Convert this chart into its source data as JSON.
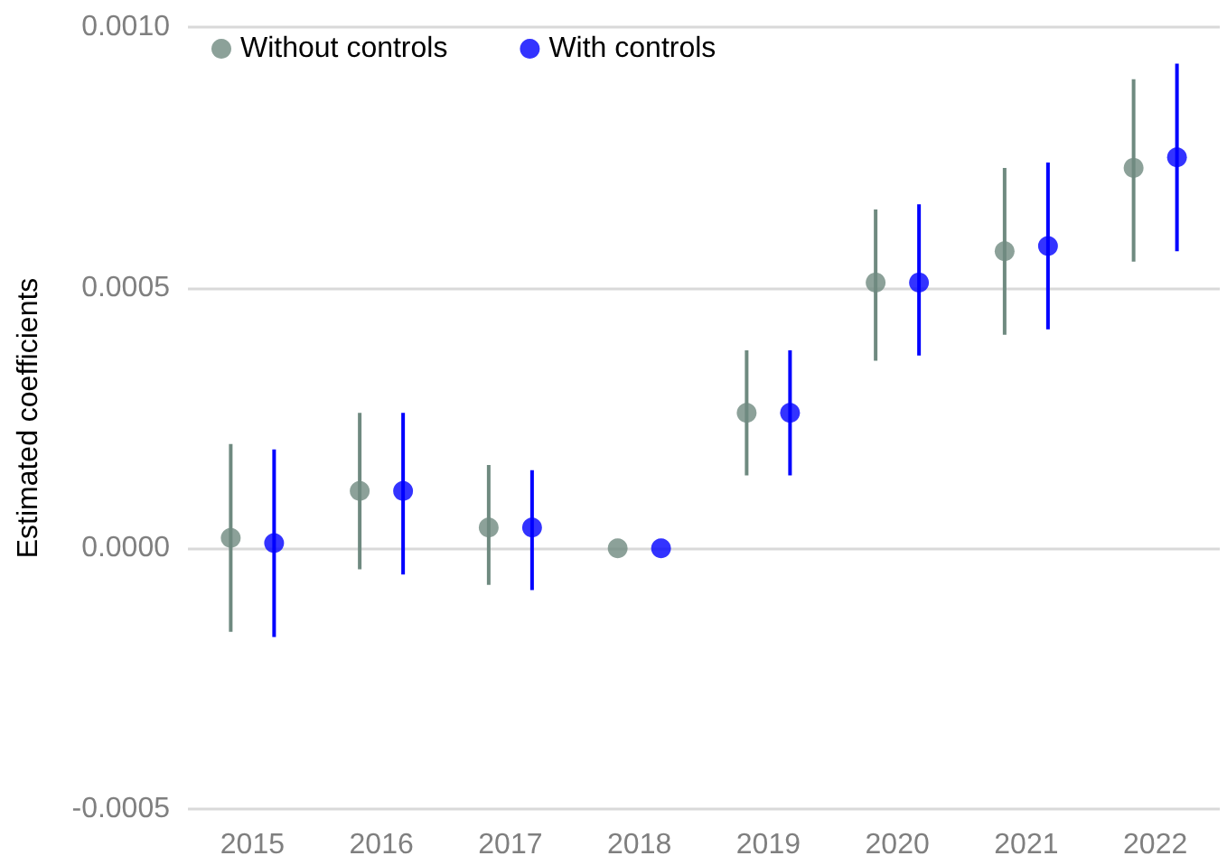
{
  "chart_data": {
    "type": "scatter",
    "ylabel": "Estimated coefficients",
    "categories": [
      "2015",
      "2016",
      "2017",
      "2018",
      "2019",
      "2020",
      "2021",
      "2022"
    ],
    "series": [
      {
        "name": "Without controls",
        "color": "#6f8a80",
        "values": [
          2e-05,
          0.00011,
          4e-05,
          0,
          0.00026,
          0.00051,
          0.00057,
          0.00073
        ],
        "errors": [
          [
            -0.00016,
            0.0002
          ],
          [
            -4e-05,
            0.00026
          ],
          [
            -7e-05,
            0.00016
          ],
          null,
          [
            0.00014,
            0.00038
          ],
          [
            0.00036,
            0.00065
          ],
          [
            0.00041,
            0.00073
          ],
          [
            0.00055,
            0.0009
          ]
        ]
      },
      {
        "name": "With controls",
        "color": "#0000ff",
        "values": [
          1e-05,
          0.00011,
          4e-05,
          0,
          0.00026,
          0.00051,
          0.00058,
          0.00075
        ],
        "errors": [
          [
            -0.00017,
            0.00019
          ],
          [
            -5e-05,
            0.00026
          ],
          [
            -8e-05,
            0.00015
          ],
          null,
          [
            0.00014,
            0.00038
          ],
          [
            0.00037,
            0.00066
          ],
          [
            0.00042,
            0.00074
          ],
          [
            0.00057,
            0.00093
          ]
        ]
      }
    ],
    "ylim": [
      -0.0005,
      0.001
    ],
    "yticks": [
      {
        "value": -0.0005,
        "label": "-0.0005"
      },
      {
        "value": 0,
        "label": "0.0000"
      },
      {
        "value": 0.0005,
        "label": "0.0005"
      },
      {
        "value": 0.001,
        "label": "0.0010"
      }
    ],
    "grid": "y",
    "legend": "top left",
    "marker": "circle"
  }
}
